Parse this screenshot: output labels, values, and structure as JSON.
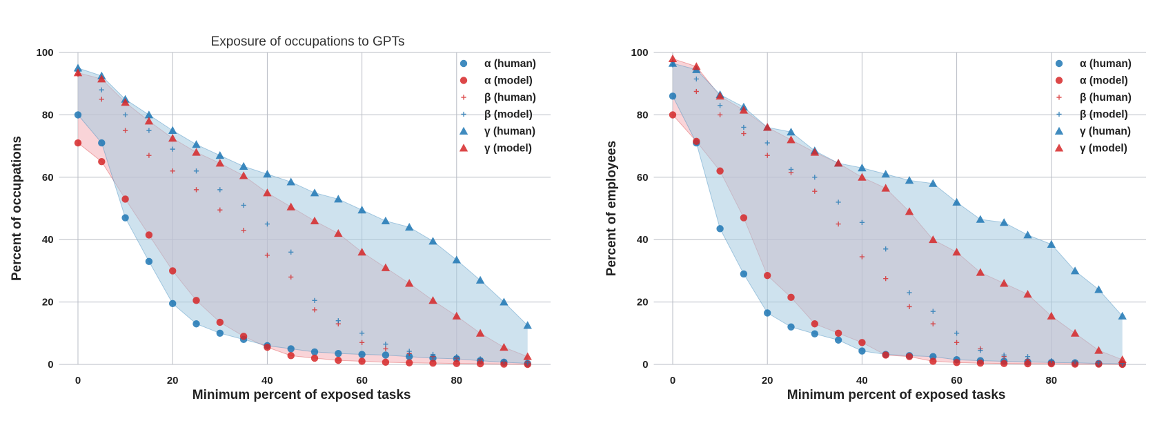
{
  "colors": {
    "human": "#1f77b4",
    "model": "#d62728",
    "human_fill": "#a6cbe0",
    "model_fill": "#f3a9b1"
  },
  "chart_data": [
    {
      "type": "scatter",
      "title": "Exposure of occupations to GPTs",
      "xlabel": "Minimum percent of exposed tasks",
      "ylabel": "Percent of occupations",
      "xlim": [
        -4,
        100
      ],
      "ylim": [
        0,
        100
      ],
      "xticks": [
        0,
        20,
        40,
        60,
        80
      ],
      "yticks": [
        0,
        20,
        40,
        60,
        80,
        100
      ],
      "grid": true,
      "legend_position": "top-right",
      "x": [
        0,
        5,
        10,
        15,
        20,
        25,
        30,
        35,
        40,
        45,
        50,
        55,
        60,
        65,
        70,
        75,
        80,
        85,
        90,
        95
      ],
      "series": [
        {
          "name": "α (human)",
          "group": "human",
          "marker": "circle",
          "values": [
            80,
            71,
            47,
            33,
            19.5,
            13,
            10,
            8,
            6,
            5,
            4,
            3.5,
            3.2,
            3,
            2.5,
            2,
            1.8,
            1.2,
            0.7,
            0.3
          ]
        },
        {
          "name": "α (model)",
          "group": "model",
          "marker": "circle",
          "values": [
            71,
            65,
            53,
            41.5,
            30,
            20.5,
            13.5,
            9,
            5.5,
            2.8,
            2,
            1.3,
            1,
            0.7,
            0.5,
            0.4,
            0.3,
            0.2,
            0.1,
            0
          ]
        },
        {
          "name": "β (human)",
          "group": "model",
          "marker": "plus",
          "values": [
            93,
            85,
            75,
            67,
            62,
            56,
            49.5,
            43,
            35,
            28,
            17.5,
            13,
            7,
            5,
            3.5,
            2.5,
            2,
            1.5,
            0.8,
            0.4
          ]
        },
        {
          "name": "β (model)",
          "group": "human",
          "marker": "plus",
          "values": [
            94,
            88,
            80,
            75,
            69,
            62,
            56,
            51,
            45,
            36,
            20.5,
            14,
            10,
            6.5,
            4.2,
            3.2,
            2.5,
            1.8,
            1,
            0.5
          ]
        },
        {
          "name": "γ (human)",
          "group": "human",
          "marker": "triangle",
          "values": [
            95,
            92.5,
            85,
            80,
            75,
            70.5,
            67,
            63.5,
            61,
            58.5,
            55,
            53,
            49.5,
            46,
            44,
            39.5,
            33.5,
            27,
            20,
            12.5
          ]
        },
        {
          "name": "γ (model)",
          "group": "model",
          "marker": "triangle",
          "values": [
            93.5,
            91.5,
            84,
            78,
            72.5,
            68,
            64.5,
            60.5,
            55,
            50.5,
            46,
            42,
            36,
            31,
            26,
            20.5,
            15.5,
            10,
            5.5,
            2.5
          ]
        }
      ]
    },
    {
      "type": "scatter",
      "title": "",
      "xlabel": "Minimum percent of exposed tasks",
      "ylabel": "Percent of employees",
      "xlim": [
        -4,
        100
      ],
      "ylim": [
        0,
        100
      ],
      "xticks": [
        0,
        20,
        40,
        60,
        80
      ],
      "yticks": [
        0,
        20,
        40,
        60,
        80,
        100
      ],
      "grid": true,
      "legend_position": "top-right",
      "x": [
        0,
        5,
        10,
        15,
        20,
        25,
        30,
        35,
        40,
        45,
        50,
        55,
        60,
        65,
        70,
        75,
        80,
        85,
        90,
        95
      ],
      "series": [
        {
          "name": "α (human)",
          "group": "human",
          "marker": "circle",
          "values": [
            86,
            71,
            43.5,
            29,
            16.5,
            12,
            9.8,
            7.8,
            4.3,
            3.2,
            2.8,
            2.5,
            1.5,
            1.2,
            1,
            0.8,
            0.6,
            0.5,
            0.3,
            0.2
          ]
        },
        {
          "name": "α (model)",
          "group": "model",
          "marker": "circle",
          "values": [
            80,
            71.5,
            62,
            47,
            28.5,
            21.5,
            13,
            10,
            7,
            3,
            2.5,
            1,
            0.6,
            0.4,
            0.3,
            0.2,
            0.2,
            0.1,
            0.1,
            0
          ]
        },
        {
          "name": "β (human)",
          "group": "model",
          "marker": "plus",
          "values": [
            97,
            87.5,
            80,
            74,
            67,
            61.5,
            55.5,
            45,
            34.5,
            27.5,
            18.5,
            13,
            7,
            5,
            2.5,
            1.5,
            1,
            0.5,
            0.3,
            0.2
          ]
        },
        {
          "name": "β (model)",
          "group": "human",
          "marker": "plus",
          "values": [
            96,
            91.5,
            83,
            76,
            71,
            62.5,
            60,
            52,
            45.5,
            37,
            23,
            17,
            10,
            4.5,
            3,
            2.5,
            1.2,
            0.8,
            0.5,
            0.3
          ]
        },
        {
          "name": "γ (human)",
          "group": "human",
          "marker": "triangle",
          "values": [
            96.5,
            94.5,
            86.5,
            82.5,
            76,
            74.5,
            68.5,
            64.5,
            63,
            61,
            59,
            58,
            52,
            46.5,
            45.5,
            41.5,
            38.5,
            30,
            24,
            15.5
          ]
        },
        {
          "name": "γ (model)",
          "group": "model",
          "marker": "triangle",
          "values": [
            98,
            95.5,
            86,
            81.5,
            76,
            72,
            68,
            64.5,
            60,
            56.5,
            49,
            40,
            36,
            29.5,
            26,
            22.5,
            15.5,
            10,
            4.5,
            1.5
          ]
        }
      ]
    }
  ]
}
